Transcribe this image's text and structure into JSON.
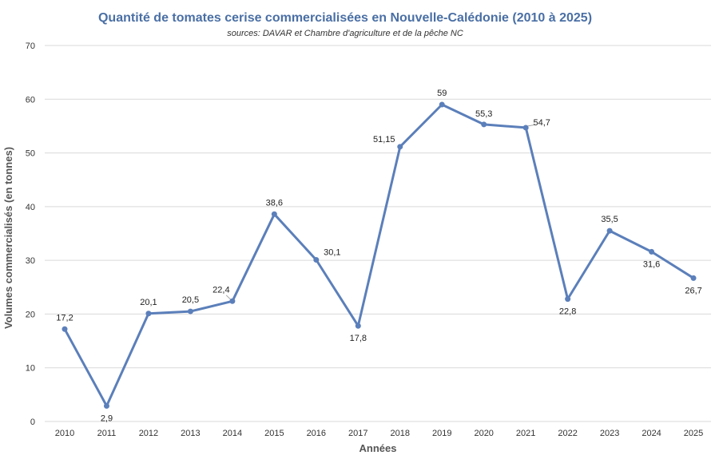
{
  "chart_data": {
    "type": "line",
    "title": "Quantité de tomates cerise commercialisées en Nouvelle-Calédonie (2010 à 2025)",
    "subtitle": "sources: DAVAR et Chambre d'agriculture et de la pêche NC",
    "xlabel": "Années",
    "ylabel": "Volumes commercialisés (en tonnes)",
    "ylim": [
      0,
      70
    ],
    "yticks": [
      0,
      10,
      20,
      30,
      40,
      50,
      60,
      70
    ],
    "grid": true,
    "legend": "none",
    "color": "#5b7fba",
    "categories": [
      "2010",
      "2011",
      "2012",
      "2013",
      "2014",
      "2015",
      "2016",
      "2017",
      "2018",
      "2019",
      "2020",
      "2021",
      "2022",
      "2023",
      "2024",
      "2025"
    ],
    "values": [
      17.2,
      2.9,
      20.1,
      20.5,
      22.4,
      38.6,
      30.1,
      17.8,
      51.15,
      59,
      55.3,
      54.7,
      22.8,
      35.5,
      31.6,
      26.7
    ],
    "data_labels": [
      "17,2",
      "2,9",
      "20,1",
      "20,5",
      "22,4",
      "38,6",
      "30,1",
      "17,8",
      "51,15",
      "59",
      "55,3",
      "54,7",
      "22,8",
      "35,5",
      "31,6",
      "26,7"
    ]
  }
}
